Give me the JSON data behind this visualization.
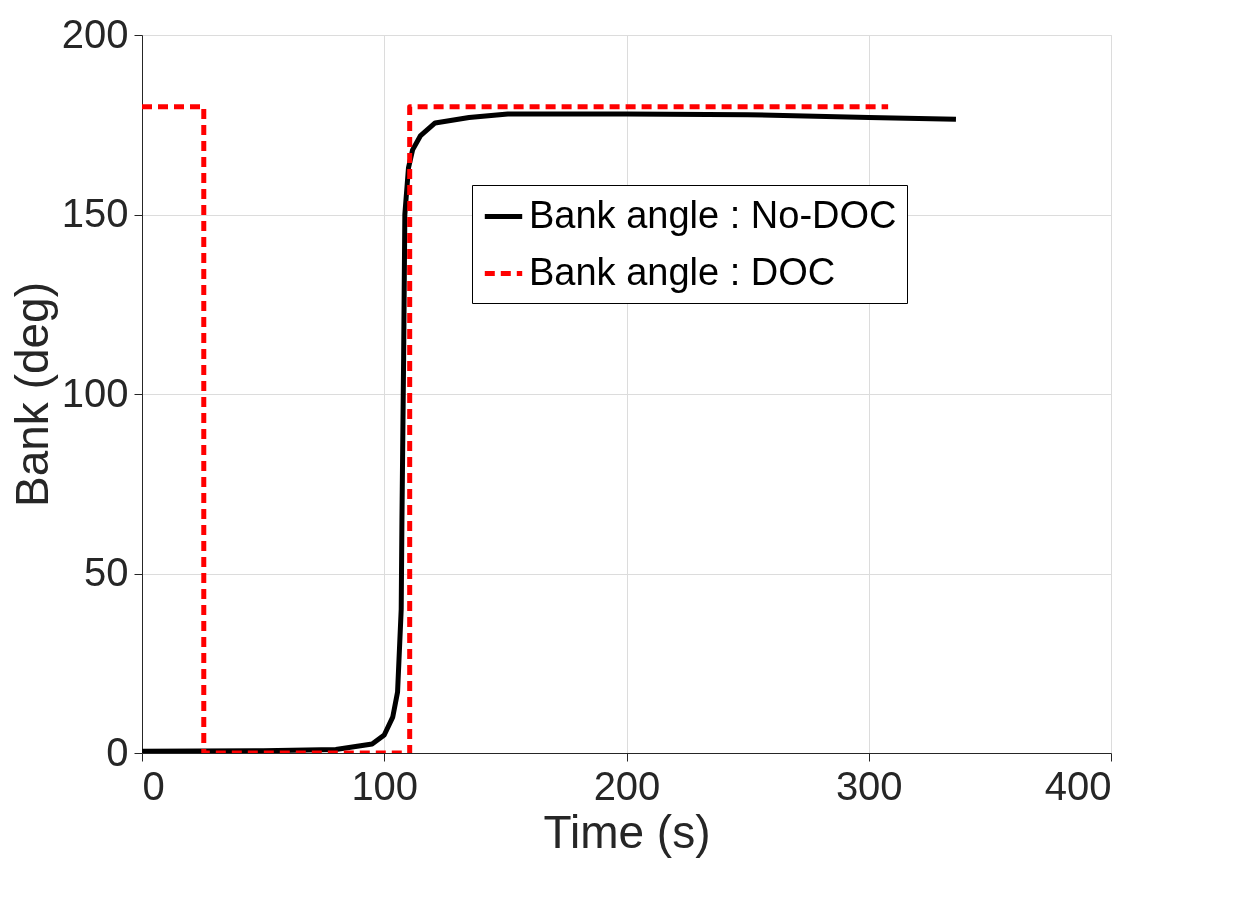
{
  "chart_data": {
    "type": "line",
    "xlabel": "Time   (s)",
    "ylabel": "Bank (deg)",
    "xlim": [
      0,
      400
    ],
    "xticks": [
      0,
      100,
      200,
      300,
      400
    ],
    "ylim": [
      0,
      200
    ],
    "yticks": [
      0,
      50,
      100,
      150,
      200
    ],
    "grid": true,
    "legend": "top right",
    "series": [
      {
        "name": "Bank angle : No-DOC",
        "color": "#000000",
        "line_style": "solid",
        "x": [
          0,
          50,
          80,
          95,
          100,
          103.5,
          105.5,
          107,
          107.3,
          108,
          108.5,
          110,
          111.7,
          115,
          121,
          135,
          151,
          200,
          250,
          300,
          336
        ],
        "values": [
          0.5,
          0.6,
          1,
          2.5,
          5,
          10,
          17,
          40,
          65,
          110,
          150,
          163,
          168,
          172,
          175.5,
          177,
          178,
          178,
          177.8,
          177,
          176.5
        ]
      },
      {
        "name": "Bank angle : DOC",
        "color": "#ff0000",
        "line_style": "dashed",
        "x": [
          0,
          25.5,
          25.5,
          110.5,
          110.5,
          308
        ],
        "values": [
          180,
          180,
          0,
          0,
          180,
          180
        ]
      }
    ]
  }
}
